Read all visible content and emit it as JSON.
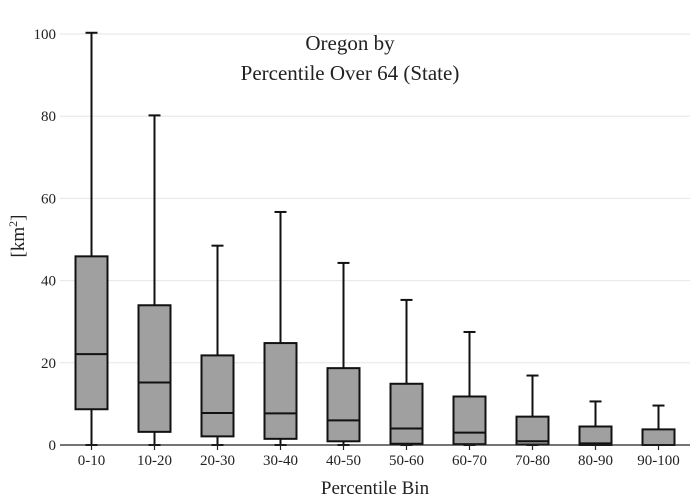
{
  "chart_data": {
    "type": "box",
    "title_line1": "Oregon  by",
    "title_line2": "Percentile Over 64 (State)",
    "xlabel": "Percentile Bin",
    "ylabel": "[km",
    "ylabel_sup": "2",
    "ylabel_close": "]",
    "ylim": [
      0,
      100
    ],
    "yticks": [
      0,
      20,
      40,
      60,
      80,
      100
    ],
    "grid": true,
    "box_color": "#a0a0a0",
    "categories": [
      "0-10",
      "10-20",
      "20-30",
      "30-40",
      "40-50",
      "50-60",
      "60-70",
      "70-80",
      "80-90",
      "90-100"
    ],
    "boxes": [
      {
        "min": 0,
        "q1": 8.7,
        "median": 22.1,
        "q3": 45.9,
        "max": 100.3
      },
      {
        "min": 0,
        "q1": 3.2,
        "median": 15.2,
        "q3": 34.0,
        "max": 80.2
      },
      {
        "min": 0,
        "q1": 2.1,
        "median": 7.8,
        "q3": 21.8,
        "max": 48.5
      },
      {
        "min": 0,
        "q1": 1.5,
        "median": 7.7,
        "q3": 24.8,
        "max": 56.7
      },
      {
        "min": 0,
        "q1": 0.9,
        "median": 6.0,
        "q3": 18.7,
        "max": 44.3
      },
      {
        "min": 0,
        "q1": 0.3,
        "median": 4.0,
        "q3": 14.9,
        "max": 35.3
      },
      {
        "min": 0,
        "q1": 0.2,
        "median": 3.0,
        "q3": 11.8,
        "max": 27.5
      },
      {
        "min": 0,
        "q1": 0.1,
        "median": 0.9,
        "q3": 6.9,
        "max": 16.9
      },
      {
        "min": 0,
        "q1": 0.0,
        "median": 0.4,
        "q3": 4.5,
        "max": 10.6
      },
      {
        "min": 0,
        "q1": 0.0,
        "median": 0.0,
        "q3": 3.8,
        "max": 9.6
      }
    ]
  }
}
